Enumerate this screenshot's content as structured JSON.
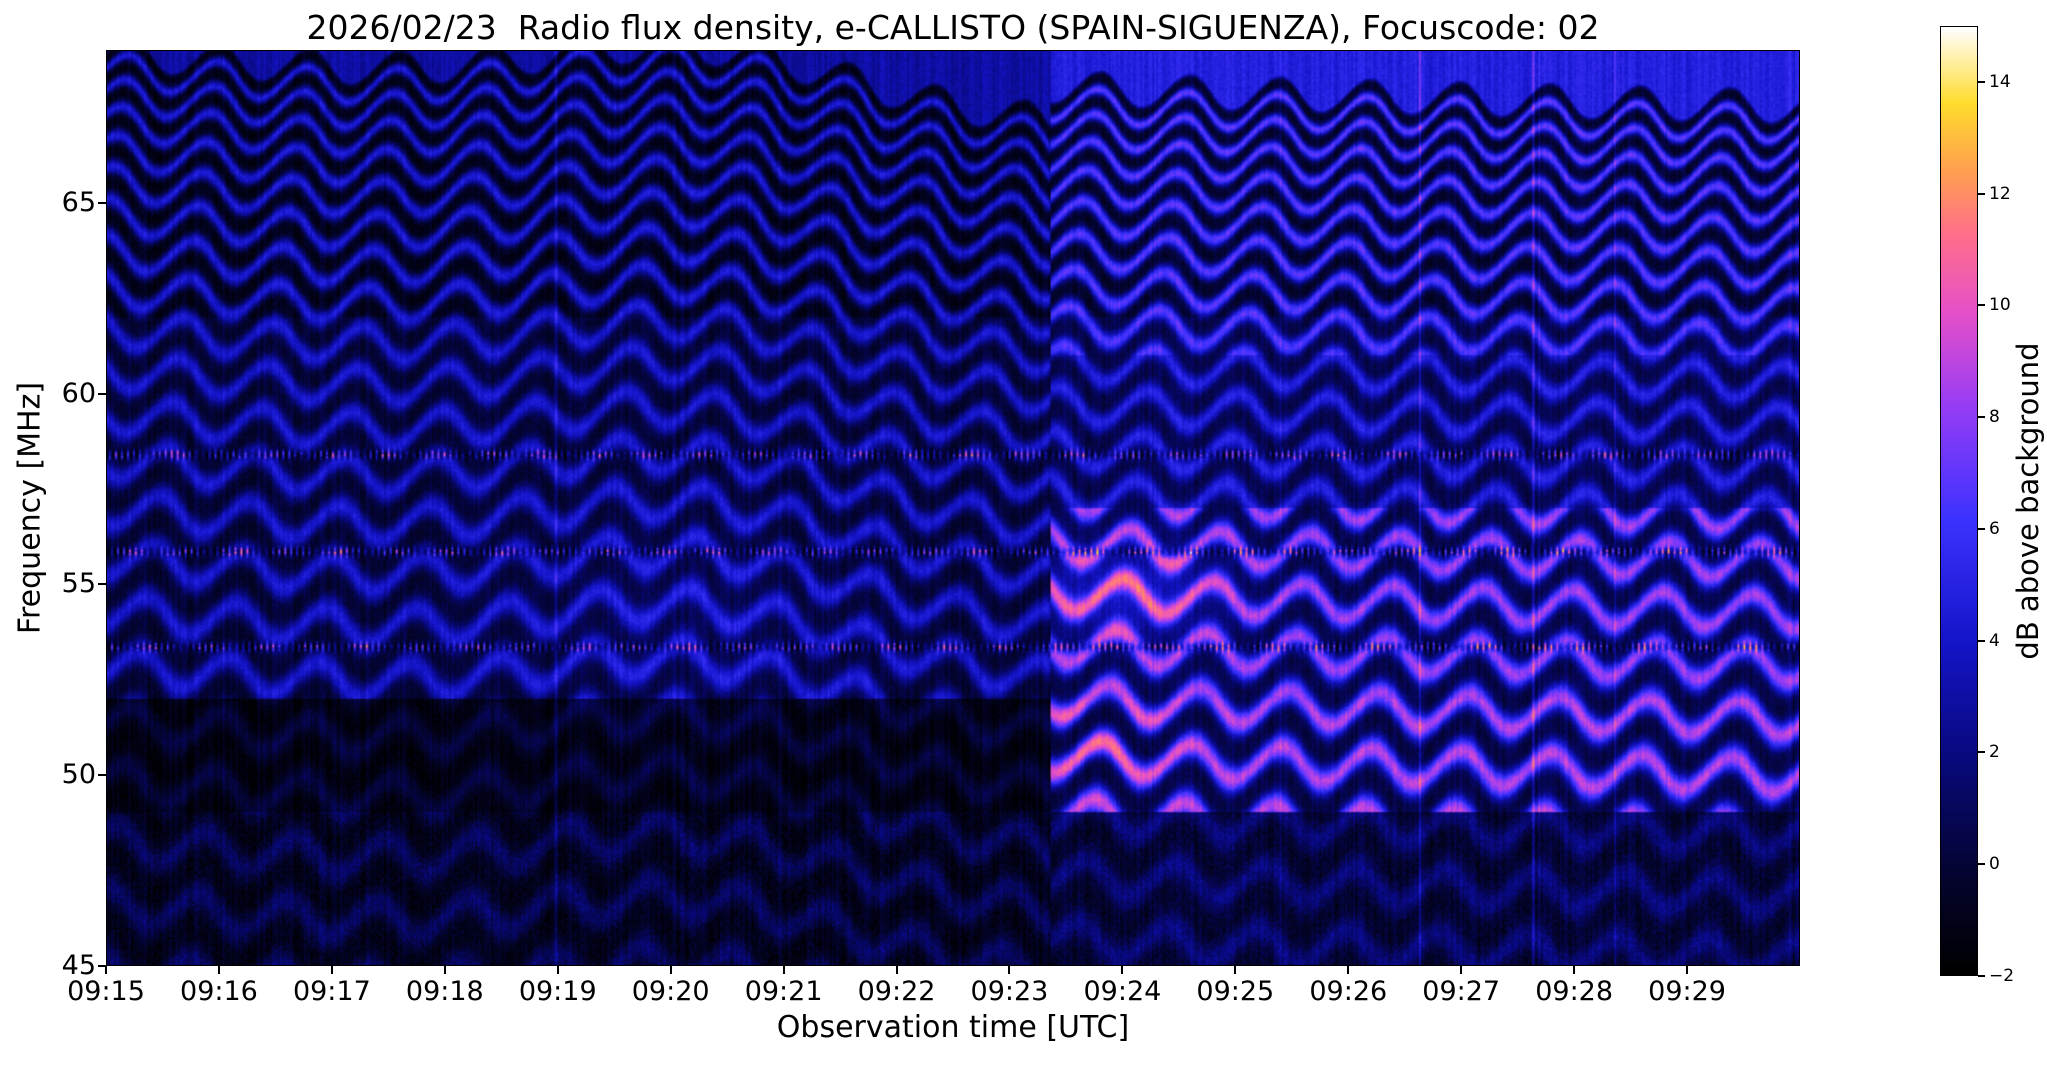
{
  "figure": {
    "background": "#ffffff"
  },
  "chart_data": {
    "type": "heatmap",
    "title": "2026/02/23  Radio flux density, e-CALLISTO (SPAIN-SIGUENZA), Focuscode: 02",
    "xlabel": "Observation time [UTC]",
    "ylabel": "Frequency [MHz]",
    "x_ticks": [
      "09:15",
      "09:16",
      "09:17",
      "09:18",
      "09:19",
      "09:20",
      "09:21",
      "09:22",
      "09:23",
      "09:24",
      "09:25",
      "09:26",
      "09:27",
      "09:28",
      "09:29"
    ],
    "x_span_minutes": 15,
    "y_ticks": [
      45,
      50,
      55,
      60,
      65
    ],
    "ylim": [
      45,
      69
    ],
    "grid": false,
    "colorbar": {
      "label": "dB above background",
      "ticks": [
        -2,
        0,
        2,
        4,
        6,
        8,
        10,
        12,
        14
      ],
      "vmin": -2,
      "vmax": 15,
      "position": "right",
      "colormap": "gnuplot2-like",
      "colormap_stops": [
        [
          0.0,
          0,
          0,
          0
        ],
        [
          0.1,
          4,
          4,
          45
        ],
        [
          0.22,
          8,
          8,
          120
        ],
        [
          0.35,
          20,
          20,
          200
        ],
        [
          0.48,
          60,
          50,
          255
        ],
        [
          0.6,
          150,
          60,
          245
        ],
        [
          0.7,
          230,
          80,
          200
        ],
        [
          0.78,
          255,
          110,
          140
        ],
        [
          0.85,
          255,
          160,
          80
        ],
        [
          0.92,
          255,
          220,
          45
        ],
        [
          1.0,
          255,
          255,
          255
        ]
      ]
    },
    "pattern": {
      "description": "Wavy diagonal interference fringes across the whole band; high-contrast black/blue fringes above ~62 MHz; horizontal dashed interference lines near 53.3, 55.8 and 58.4 MHz; dark quiet band 49-52 MHz in the left segment; vertical file boundary at ~09:23:20 after which the spectrum is brighter with magenta fringe crests around 50-56 MHz; faint mottled background below 49 MHz",
      "segment_boundary_min": 8.37,
      "fringe_cycles_k": 6,
      "fringe_offset_a": 3,
      "drift_mhz_per_min": -0.22,
      "bump_center_min": 5.2,
      "bump_amp_mhz": 1.3,
      "wiggle_period_min": 0.8,
      "wiggle_amp_mhz": 0.45,
      "interference_lines_mhz": [
        53.35,
        55.85,
        58.4
      ],
      "dark_band_mhz": [
        49,
        52
      ]
    }
  }
}
